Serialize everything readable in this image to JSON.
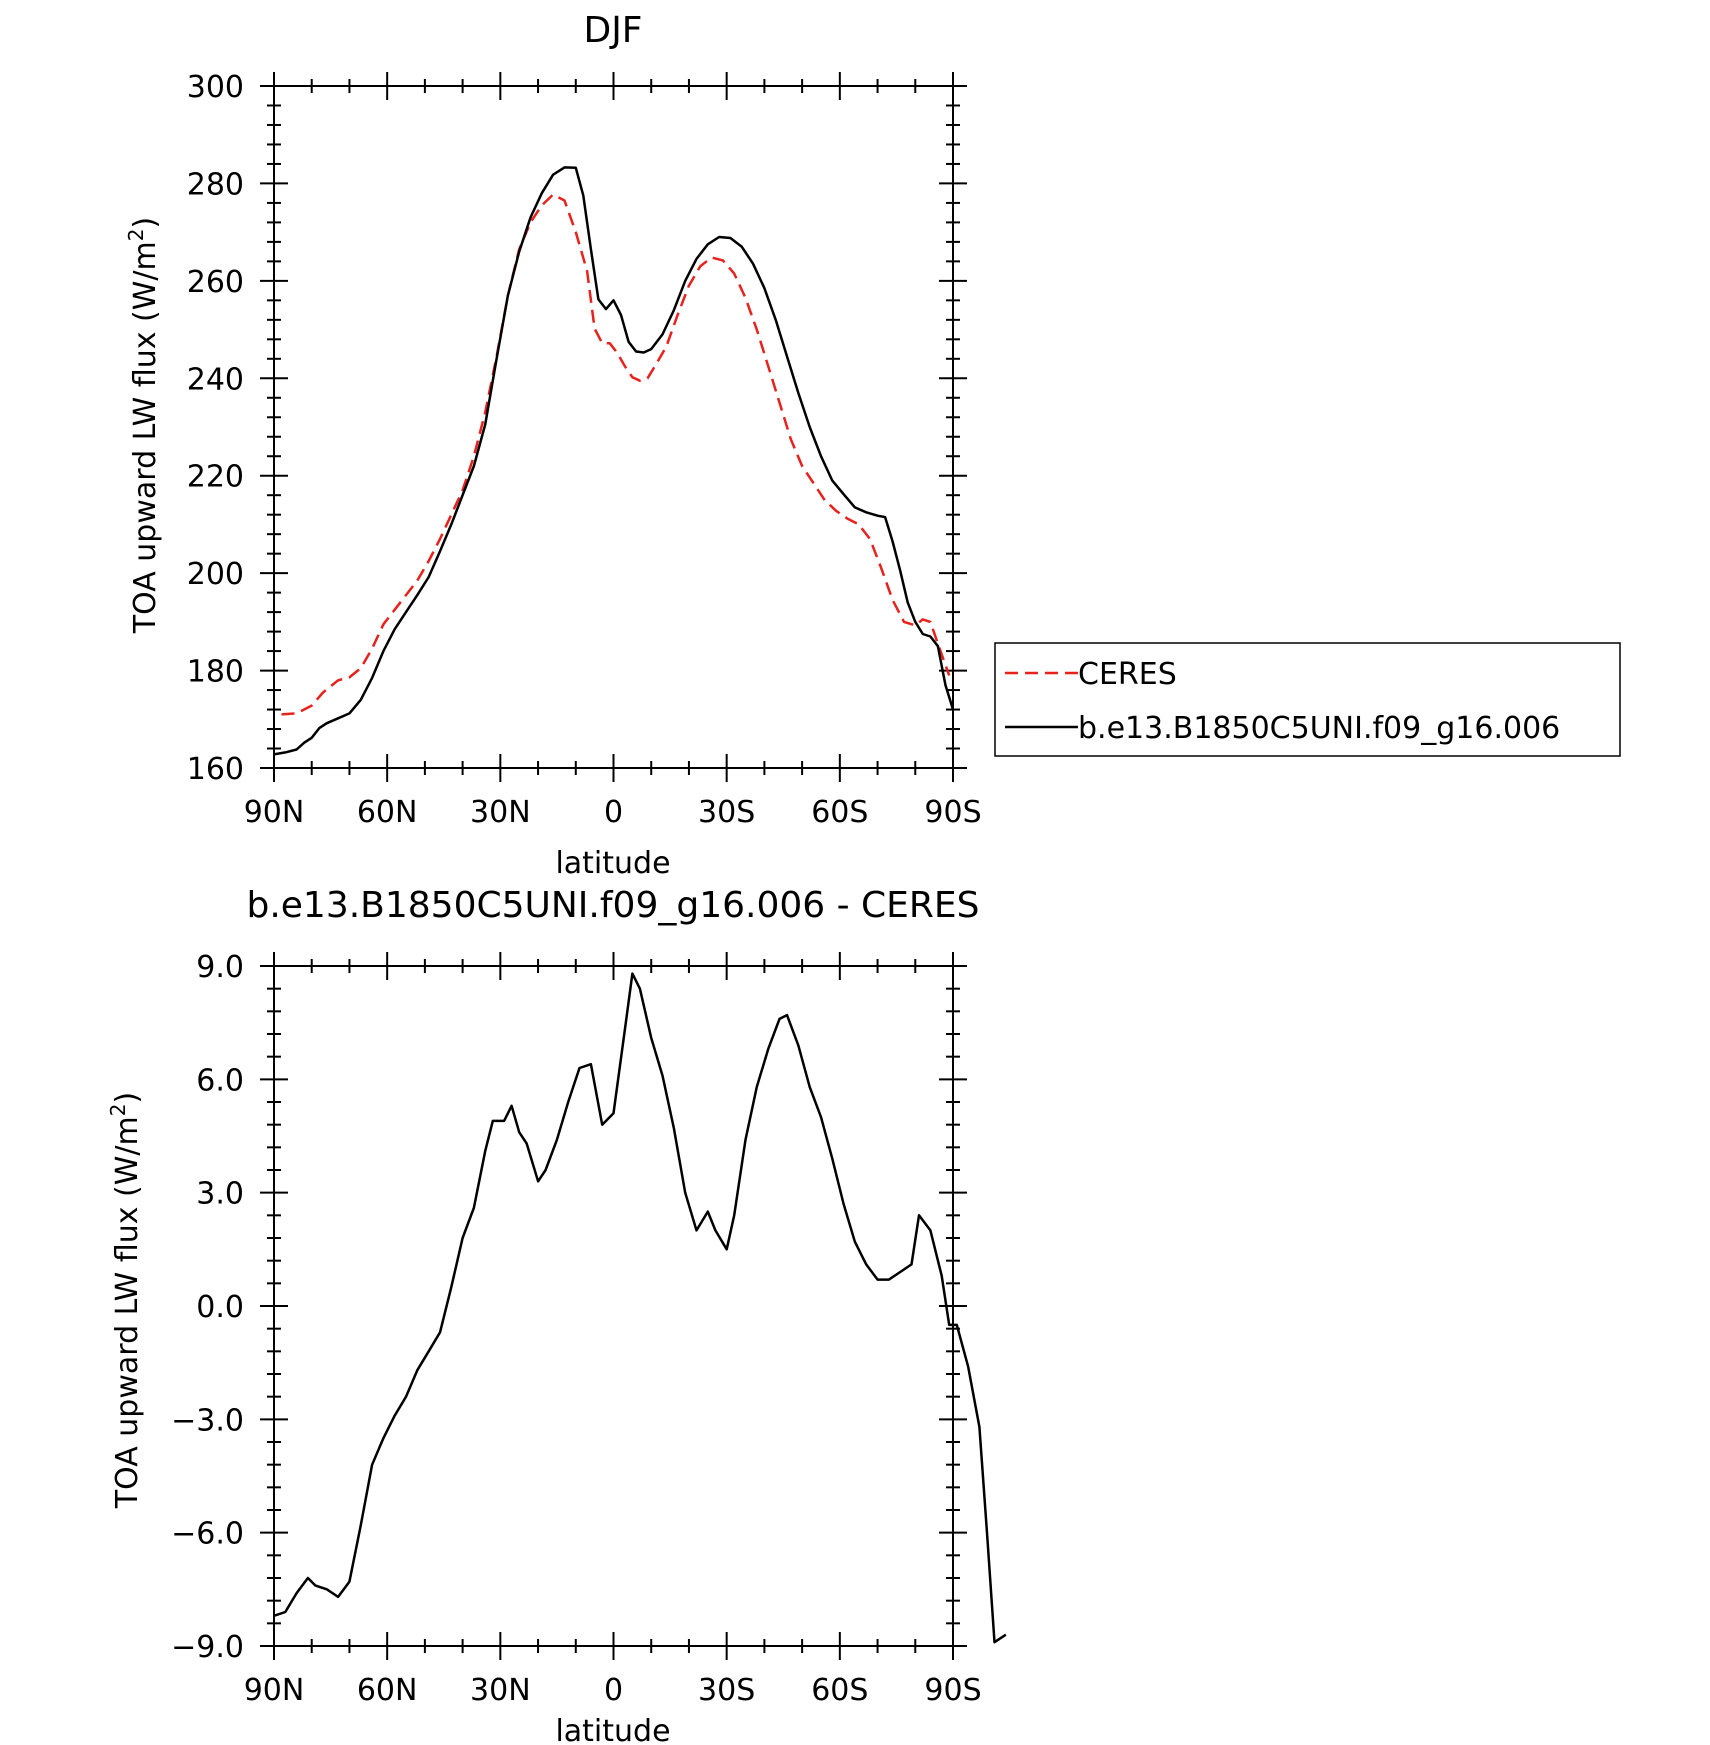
{
  "chart_data": [
    {
      "type": "line",
      "title": "DJF",
      "xlabel": "latitude",
      "ylabel": "TOA upward LW flux (W/m²)",
      "ylabel_parts": {
        "main": "TOA upward LW flux (W/m",
        "sup": "2",
        "end": ")"
      },
      "xlim": [
        90,
        -90
      ],
      "ylim": [
        160,
        300
      ],
      "xticks": [
        {
          "value": 90,
          "label": "90N"
        },
        {
          "value": 60,
          "label": "60N"
        },
        {
          "value": 30,
          "label": "30N"
        },
        {
          "value": 0,
          "label": "0"
        },
        {
          "value": -30,
          "label": "30S"
        },
        {
          "value": -60,
          "label": "60S"
        },
        {
          "value": -90,
          "label": "90S"
        }
      ],
      "yticks": [
        {
          "value": 160,
          "label": "160"
        },
        {
          "value": 180,
          "label": "180"
        },
        {
          "value": 200,
          "label": "200"
        },
        {
          "value": 220,
          "label": "220"
        },
        {
          "value": 240,
          "label": "240"
        },
        {
          "value": 260,
          "label": "260"
        },
        {
          "value": 280,
          "label": "280"
        },
        {
          "value": 300,
          "label": "300"
        }
      ],
      "legend": {
        "position": "right"
      },
      "series": [
        {
          "name": "CERES",
          "color": "#e8211c",
          "style": "dashed",
          "points": [
            [
              88,
              171
            ],
            [
              84,
              171.2
            ],
            [
              80,
              172.8
            ],
            [
              77,
              175.5
            ],
            [
              73,
              178
            ],
            [
              70,
              178.6
            ],
            [
              67,
              180.5
            ],
            [
              64,
              184.5
            ],
            [
              61,
              189.5
            ],
            [
              58,
              192.5
            ],
            [
              55,
              195.5
            ],
            [
              52,
              198.5
            ],
            [
              49,
              202.5
            ],
            [
              46,
              207
            ],
            [
              43,
              212
            ],
            [
              40,
              217
            ],
            [
              37,
              224
            ],
            [
              34,
              233
            ],
            [
              31,
              244.5
            ],
            [
              28,
              257
            ],
            [
              25,
              266.5
            ],
            [
              22,
              272
            ],
            [
              19,
              275.5
            ],
            [
              16,
              277.7
            ],
            [
              13,
              276.5
            ],
            [
              10,
              270
            ],
            [
              7,
              262
            ],
            [
              5,
              250.2
            ],
            [
              3,
              247.2
            ],
            [
              1,
              247.2
            ],
            [
              -1,
              245.2
            ],
            [
              -3,
              242.5
            ],
            [
              -5,
              240.2
            ],
            [
              -7,
              239.5
            ],
            [
              -9,
              240
            ],
            [
              -11,
              242.5
            ],
            [
              -14,
              246.5
            ],
            [
              -17,
              253
            ],
            [
              -20,
              259
            ],
            [
              -23,
              263
            ],
            [
              -26,
              264.8
            ],
            [
              -29,
              264.2
            ],
            [
              -32,
              261.5
            ],
            [
              -35,
              256.5
            ],
            [
              -38,
              250
            ],
            [
              -41,
              242.5
            ],
            [
              -44,
              235
            ],
            [
              -47,
              227.5
            ],
            [
              -50,
              222
            ],
            [
              -53,
              218.5
            ],
            [
              -56,
              215
            ],
            [
              -59,
              212.8
            ],
            [
              -62,
              211.2
            ],
            [
              -65,
              210
            ],
            [
              -68,
              207
            ],
            [
              -71,
              201
            ],
            [
              -74,
              194.5
            ],
            [
              -77,
              190
            ],
            [
              -80,
              189.3
            ],
            [
              -82,
              190.5
            ],
            [
              -84,
              190
            ],
            [
              -86,
              185.5
            ],
            [
              -89,
              179
            ]
          ]
        },
        {
          "name": "b.e13.B1850C5UNI.f09_g16.006",
          "color": "#000000",
          "style": "solid",
          "points": [
            [
              90,
              162.8
            ],
            [
              87,
              163.2
            ],
            [
              84,
              163.8
            ],
            [
              82,
              165.2
            ],
            [
              80,
              166.2
            ],
            [
              78,
              168.2
            ],
            [
              76,
              169.2
            ],
            [
              73,
              170.2
            ],
            [
              70,
              171.2
            ],
            [
              67,
              174
            ],
            [
              64,
              178.5
            ],
            [
              61,
              184
            ],
            [
              58,
              188.5
            ],
            [
              55,
              192
            ],
            [
              52,
              195.5
            ],
            [
              49,
              199.2
            ],
            [
              46,
              204.5
            ],
            [
              43,
              210
            ],
            [
              40,
              216
            ],
            [
              37,
              222
            ],
            [
              34,
              230.5
            ],
            [
              31,
              244
            ],
            [
              28,
              257
            ],
            [
              25,
              266
            ],
            [
              22,
              273
            ],
            [
              19,
              278
            ],
            [
              16,
              281.8
            ],
            [
              13,
              283.3
            ],
            [
              10,
              283.2
            ],
            [
              8,
              277.5
            ],
            [
              6,
              266.5
            ],
            [
              4,
              256.2
            ],
            [
              2,
              254.2
            ],
            [
              0,
              256
            ],
            [
              -2,
              253
            ],
            [
              -4,
              247.5
            ],
            [
              -6,
              245.5
            ],
            [
              -8,
              245.3
            ],
            [
              -10,
              246
            ],
            [
              -13,
              249
            ],
            [
              -16,
              254
            ],
            [
              -19,
              260
            ],
            [
              -22,
              264.5
            ],
            [
              -25,
              267.5
            ],
            [
              -28,
              269
            ],
            [
              -31,
              268.8
            ],
            [
              -34,
              267
            ],
            [
              -37,
              263.5
            ],
            [
              -40,
              258.5
            ],
            [
              -43,
              252
            ],
            [
              -46,
              244.5
            ],
            [
              -49,
              237
            ],
            [
              -52,
              230
            ],
            [
              -55,
              224
            ],
            [
              -58,
              219
            ],
            [
              -61,
              216.2
            ],
            [
              -64,
              213.5
            ],
            [
              -67,
              212.5
            ],
            [
              -70,
              211.8
            ],
            [
              -72,
              211.5
            ],
            [
              -74,
              206.5
            ],
            [
              -76,
              200.5
            ],
            [
              -78,
              194
            ],
            [
              -80,
              190
            ],
            [
              -82,
              187.5
            ],
            [
              -84,
              187
            ],
            [
              -86,
              185
            ],
            [
              -88,
              177
            ],
            [
              -90,
              172
            ]
          ]
        }
      ]
    },
    {
      "type": "line",
      "title": "b.e13.B1850C5UNI.f09_g16.006 - CERES",
      "xlabel": "latitude",
      "ylabel": "TOA upward LW flux (W/m²)",
      "ylabel_parts": {
        "main": "TOA upward LW flux (W/m",
        "sup": "2",
        "end": ")"
      },
      "xlim": [
        90,
        -90
      ],
      "ylim": [
        -9,
        9
      ],
      "xticks": [
        {
          "value": 90,
          "label": "90N"
        },
        {
          "value": 60,
          "label": "60N"
        },
        {
          "value": 30,
          "label": "30N"
        },
        {
          "value": 0,
          "label": "0"
        },
        {
          "value": -30,
          "label": "30S"
        },
        {
          "value": -60,
          "label": "60S"
        },
        {
          "value": -90,
          "label": "90S"
        }
      ],
      "yticks": [
        {
          "value": -9,
          "label": "−9.0"
        },
        {
          "value": -6,
          "label": "−6.0"
        },
        {
          "value": -3,
          "label": "−3.0"
        },
        {
          "value": 0,
          "label": "0.0"
        },
        {
          "value": 3,
          "label": "3.0"
        },
        {
          "value": 6,
          "label": "6.0"
        },
        {
          "value": 9,
          "label": "9.0"
        }
      ],
      "series": [
        {
          "color": "#000000",
          "style": "solid",
          "points": [
            [
              90,
              -8.2
            ],
            [
              87,
              -8.1
            ],
            [
              84,
              -7.6
            ],
            [
              81,
              -7.2
            ],
            [
              79,
              -7.4
            ],
            [
              76,
              -7.5
            ],
            [
              73,
              -7.7
            ],
            [
              70,
              -7.3
            ],
            [
              67,
              -5.8
            ],
            [
              64,
              -4.2
            ],
            [
              61,
              -3.5
            ],
            [
              58,
              -2.9
            ],
            [
              55,
              -2.4
            ],
            [
              52,
              -1.7
            ],
            [
              49,
              -1.2
            ],
            [
              46,
              -0.7
            ],
            [
              43,
              0.5
            ],
            [
              40,
              1.8
            ],
            [
              37,
              2.6
            ],
            [
              34,
              4.1
            ],
            [
              32,
              4.9
            ],
            [
              29,
              4.9
            ],
            [
              27,
              5.3
            ],
            [
              25,
              4.6
            ],
            [
              23,
              4.3
            ],
            [
              20,
              3.3
            ],
            [
              18,
              3.6
            ],
            [
              15,
              4.4
            ],
            [
              12,
              5.4
            ],
            [
              9,
              6.3
            ],
            [
              6,
              6.4
            ],
            [
              3,
              4.8
            ],
            [
              0,
              5.1
            ],
            [
              -3,
              7.3
            ],
            [
              -5,
              8.8
            ],
            [
              -7,
              8.4
            ],
            [
              -10,
              7.1
            ],
            [
              -13,
              6.1
            ],
            [
              -16,
              4.7
            ],
            [
              -19,
              3.0
            ],
            [
              -22,
              2.0
            ],
            [
              -25,
              2.5
            ],
            [
              -27,
              2.0
            ],
            [
              -30,
              1.5
            ],
            [
              -32,
              2.4
            ],
            [
              -35,
              4.4
            ],
            [
              -38,
              5.8
            ],
            [
              -41,
              6.8
            ],
            [
              -44,
              7.6
            ],
            [
              -46,
              7.7
            ],
            [
              -49,
              6.9
            ],
            [
              -52,
              5.8
            ],
            [
              -55,
              5.0
            ],
            [
              -58,
              3.9
            ],
            [
              -61,
              2.7
            ],
            [
              -64,
              1.7
            ],
            [
              -67,
              1.1
            ],
            [
              -70,
              0.7
            ],
            [
              -73,
              0.7
            ],
            [
              -76,
              0.9
            ],
            [
              -79,
              1.1
            ],
            [
              -81,
              2.4
            ],
            [
              -84,
              2.0
            ],
            [
              -87,
              0.8
            ],
            [
              -89,
              -0.5
            ],
            [
              -91,
              -0.5
            ],
            [
              -94,
              -1.6
            ],
            [
              -97,
              -3.2
            ],
            [
              -99,
              -6.0
            ],
            [
              -101,
              -8.9
            ],
            [
              -104,
              -8.7
            ]
          ]
        }
      ]
    }
  ]
}
